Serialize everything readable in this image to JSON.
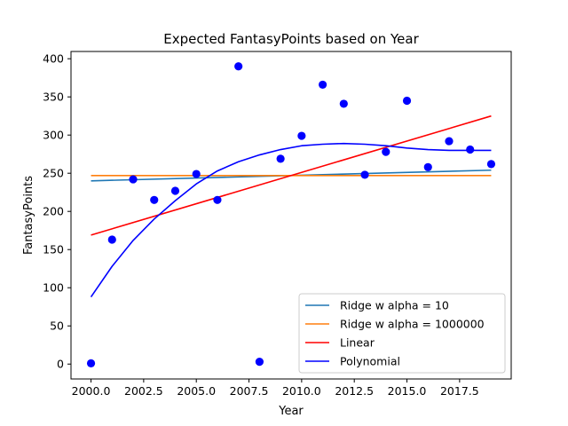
{
  "chart_data": {
    "type": "scatter",
    "title": "Expected FantasyPoints based on Year",
    "xlabel": "Year",
    "ylabel": "FantasyPoints",
    "xlim": [
      1999.05,
      2019.95
    ],
    "ylim": [
      -19.5,
      409.5
    ],
    "xticks": [
      2000.0,
      2002.5,
      2005.0,
      2007.5,
      2010.0,
      2012.5,
      2015.0,
      2017.5
    ],
    "xtick_labels": [
      "2000.0",
      "2002.5",
      "2005.0",
      "2007.5",
      "2010.0",
      "2012.5",
      "2015.0",
      "2017.5"
    ],
    "yticks": [
      0,
      50,
      100,
      150,
      200,
      250,
      300,
      350,
      400
    ],
    "ytick_labels": [
      "0",
      "50",
      "100",
      "150",
      "200",
      "250",
      "300",
      "350",
      "400"
    ],
    "grid": false,
    "legend_position": "lower-right",
    "scatter": {
      "color": "#0000ff",
      "x": [
        2000,
        2001,
        2002,
        2003,
        2004,
        2005,
        2006,
        2007,
        2008,
        2009,
        2010,
        2011,
        2012,
        2013,
        2014,
        2015,
        2016,
        2017,
        2018,
        2019
      ],
      "y": [
        1,
        163,
        242,
        215,
        227,
        249,
        215,
        390,
        3,
        269,
        299,
        366,
        341,
        248,
        278,
        345,
        258,
        292,
        281,
        262
      ]
    },
    "series": [
      {
        "name": "Ridge w alpha = 10",
        "color": "#1f77b4",
        "x": [
          2000,
          2019
        ],
        "y": [
          240,
          254
        ]
      },
      {
        "name": "Ridge w alpha = 1000000",
        "color": "#ff7f0e",
        "x": [
          2000,
          2019
        ],
        "y": [
          247,
          247
        ]
      },
      {
        "name": "Linear",
        "color": "#ff0000",
        "x": [
          2000,
          2019
        ],
        "y": [
          169,
          325
        ]
      },
      {
        "name": "Polynomial",
        "color": "#0000ff",
        "x": [
          2000,
          2001,
          2002,
          2003,
          2004,
          2005,
          2006,
          2007,
          2008,
          2009,
          2010,
          2011,
          2012,
          2013,
          2014,
          2015,
          2016,
          2017,
          2018,
          2019
        ],
        "y": [
          88,
          128,
          162,
          190,
          214,
          236,
          253,
          265,
          274,
          281,
          286,
          288,
          289,
          288,
          286,
          283,
          281,
          280,
          280,
          280
        ]
      }
    ]
  }
}
